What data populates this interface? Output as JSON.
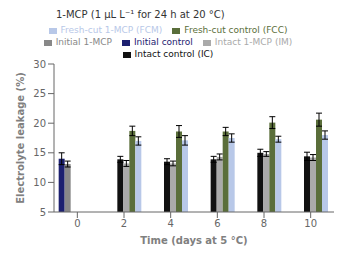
{
  "chart_data": {
    "type": "bar",
    "annotation": "1-MCP (1 μL L⁻¹ for 24 h at 20 °C)",
    "x_label": "Time (days at 5 °C)",
    "y_label": "Electrolyte leakage (%)",
    "categories": [
      "0",
      "2",
      "4",
      "6",
      "8",
      "10"
    ],
    "series": [
      {
        "name": "Initial control",
        "color": "#1c2070",
        "values": [
          14.0,
          null,
          null,
          null,
          null,
          null
        ],
        "errors": [
          1.0,
          null,
          null,
          null,
          null,
          null
        ]
      },
      {
        "name": "Initial 1-MCP",
        "color": "#888888",
        "values": [
          13.1,
          null,
          null,
          null,
          null,
          null
        ],
        "errors": [
          0.5,
          null,
          null,
          null,
          null,
          null
        ]
      },
      {
        "name": "Intact control (IC)",
        "color": "#111111",
        "values": [
          null,
          13.9,
          13.5,
          13.9,
          15.0,
          14.4
        ],
        "errors": [
          null,
          0.5,
          0.5,
          0.5,
          0.6,
          0.7
        ]
      },
      {
        "name": "Intact 1-MCP (IM)",
        "color": "#aaaaaa",
        "values": [
          null,
          13.2,
          13.2,
          14.3,
          14.8,
          14.2
        ],
        "errors": [
          null,
          0.5,
          0.4,
          0.5,
          0.4,
          0.5
        ]
      },
      {
        "name": "Fresh-cut control (FCC)",
        "color": "#5a6e3a",
        "values": [
          null,
          18.7,
          18.6,
          18.6,
          20.1,
          20.6
        ],
        "errors": [
          null,
          0.8,
          1.0,
          0.7,
          1.0,
          1.1
        ]
      },
      {
        "name": "Fresh-cut 1-MCP (FCM)",
        "color": "#b8c8e8",
        "values": [
          null,
          17.0,
          17.1,
          17.5,
          17.3,
          18.0
        ],
        "errors": [
          null,
          0.7,
          0.8,
          0.7,
          0.5,
          0.7
        ]
      }
    ],
    "ylim": [
      5,
      30
    ],
    "yticks": [
      5,
      10,
      15,
      20,
      25,
      30
    ],
    "grid": false,
    "legend": "top"
  }
}
